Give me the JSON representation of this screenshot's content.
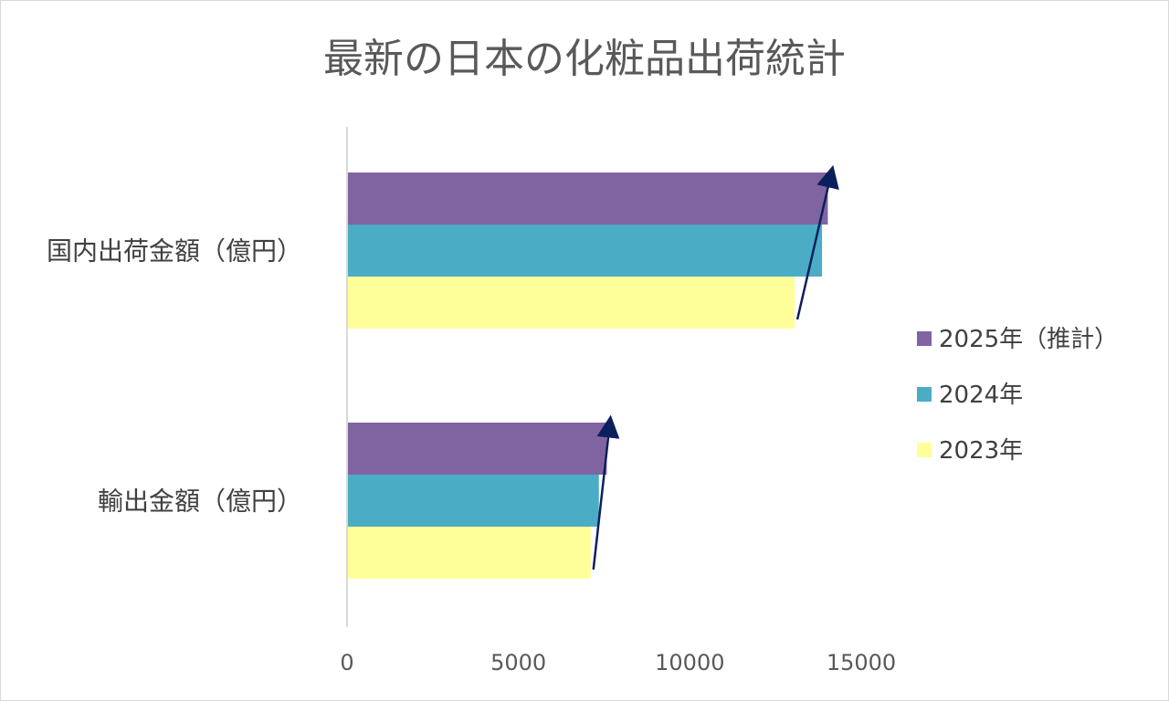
{
  "chart_data": {
    "type": "bar",
    "orientation": "horizontal",
    "title": "最新の日本の化粧品出荷統計",
    "categories": [
      "国内出荷金額（億円）",
      "輸出金額（億円）"
    ],
    "series": [
      {
        "name": "2025年（推計）",
        "values": [
          14000,
          7550
        ],
        "color": "#8064A2"
      },
      {
        "name": "2024年",
        "values": [
          13830,
          7320
        ],
        "color": "#4BACC6"
      },
      {
        "name": "2023年",
        "values": [
          13030,
          7080
        ],
        "color": "#FFFF99"
      }
    ],
    "xlim": [
      0,
      15000
    ],
    "x_ticks": [
      0,
      5000,
      10000,
      15000
    ],
    "x_tick_labels": [
      "0",
      "5000",
      "10000",
      "15000"
    ],
    "grid": false,
    "legend_position": "right",
    "annotations": [
      "trend-arrow over domestic shipment bars",
      "trend-arrow over export bars"
    ],
    "arrow_color": "#0B1F5C"
  }
}
